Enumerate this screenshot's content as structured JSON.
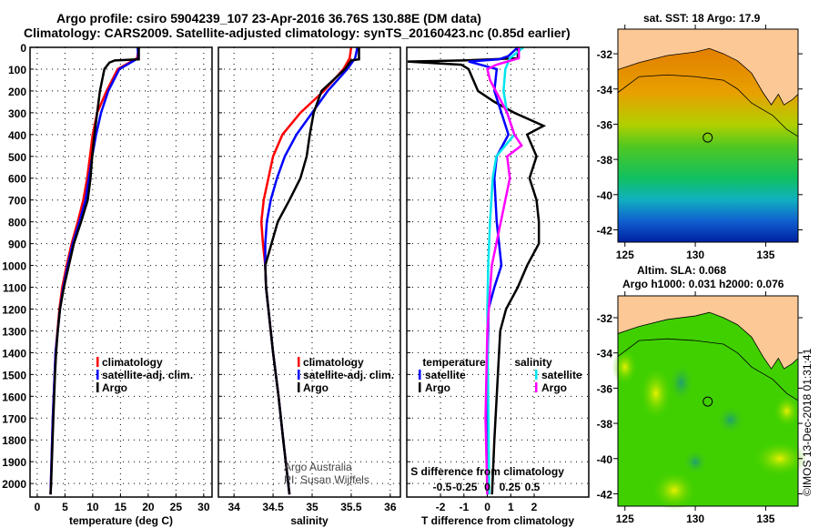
{
  "titles": {
    "line1": "Argo profile: csiro 5904239_107 23-Apr-2016 36.76S 130.88E (DM data)",
    "line2": "Climatology: CARS2009. Satellite-adjusted climatology: synTS_20160423.nc (0.85d earlier)"
  },
  "colors": {
    "climatology": "#ff0000",
    "satellite": "#0000ff",
    "argo": "#000000",
    "sal_satellite": "#00e5ee",
    "sal_argo": "#ff00ff",
    "land": "#fcc996"
  },
  "chart_data": [
    {
      "type": "line",
      "id": "temperature",
      "xlabel": "temperature (deg C)",
      "ylabel": "depth",
      "xlim": [
        -1.3,
        31.5
      ],
      "ylim": [
        2062,
        0
      ],
      "xticks": [
        0,
        5,
        10,
        15,
        20,
        25,
        30
      ],
      "yticks": [
        0,
        100,
        200,
        300,
        400,
        500,
        600,
        700,
        800,
        900,
        1000,
        1100,
        1200,
        1300,
        1400,
        1500,
        1600,
        1700,
        1800,
        1900,
        2000
      ],
      "legend": [
        "climatology",
        "satellite-adj. clim.",
        "Argo"
      ],
      "series": [
        {
          "name": "climatology",
          "color": "#ff0000",
          "depth": [
            0,
            50,
            100,
            200,
            300,
            400,
            500,
            600,
            700,
            800,
            900,
            1000,
            1100,
            1200,
            1400,
            1700,
            2050
          ],
          "values": [
            18.3,
            18.0,
            14.5,
            12.5,
            10.8,
            10.0,
            9.5,
            9.0,
            8.3,
            7.3,
            6.2,
            5.3,
            4.5,
            4.0,
            3.3,
            2.8,
            2.4
          ]
        },
        {
          "name": "satellite-adj. clim.",
          "color": "#0000ff",
          "depth": [
            0,
            50,
            100,
            200,
            300,
            400,
            500,
            600,
            700,
            800,
            900,
            1000,
            1100,
            1200,
            1400,
            1700,
            2050
          ],
          "values": [
            18.1,
            18.2,
            14.8,
            12.8,
            11.5,
            10.6,
            9.9,
            9.3,
            8.7,
            7.6,
            6.4,
            5.5,
            4.7,
            4.1,
            3.3,
            2.8,
            2.4
          ]
        },
        {
          "name": "Argo",
          "color": "#000000",
          "depth": [
            0,
            55,
            60,
            70,
            100,
            200,
            300,
            400,
            500,
            600,
            700,
            800,
            900,
            1000,
            1100,
            1200,
            1300,
            1400,
            1500,
            1700,
            2000,
            2050
          ],
          "values": [
            18.3,
            18.3,
            14,
            13,
            12.1,
            11.3,
            10.8,
            10.3,
            9.9,
            9.6,
            9.1,
            7.9,
            6.6,
            5.7,
            4.8,
            4.1,
            3.7,
            3.4,
            3.2,
            2.9,
            2.5,
            2.4
          ]
        }
      ]
    },
    {
      "type": "line",
      "id": "salinity",
      "xlabel": "salinity",
      "xlim": [
        33.8,
        36.13
      ],
      "ylim": [
        2062,
        0
      ],
      "xticks": [
        34,
        34.5,
        35,
        35.5,
        36
      ],
      "legend": [
        "climatology",
        "satellite-adj. clim.",
        "Argo"
      ],
      "annotation": [
        "Argo Australia",
        "PI: Susan Wijffels"
      ],
      "series": [
        {
          "name": "climatology",
          "color": "#ff0000",
          "depth": [
            0,
            50,
            100,
            200,
            300,
            400,
            500,
            600,
            700,
            800,
            900,
            1000,
            1100,
            1200,
            1400,
            1600,
            1800,
            2050
          ],
          "values": [
            35.5,
            35.48,
            35.4,
            35.15,
            34.85,
            34.62,
            34.5,
            34.44,
            34.38,
            34.35,
            34.37,
            34.4,
            34.41,
            34.44,
            34.5,
            34.57,
            34.63,
            34.71
          ]
        },
        {
          "name": "satellite-adj. clim.",
          "color": "#0000ff",
          "depth": [
            0,
            50,
            100,
            200,
            300,
            400,
            500,
            600,
            700,
            800,
            900,
            1000,
            1100,
            1200,
            1400,
            1600,
            1800,
            2050
          ],
          "values": [
            35.58,
            35.55,
            35.45,
            35.2,
            35.0,
            34.8,
            34.65,
            34.55,
            34.47,
            34.42,
            34.4,
            34.4,
            34.41,
            34.44,
            34.5,
            34.57,
            34.63,
            34.71
          ]
        },
        {
          "name": "Argo",
          "color": "#000000",
          "depth": [
            0,
            55,
            60,
            100,
            200,
            300,
            400,
            500,
            600,
            700,
            800,
            900,
            1000,
            1100,
            1200,
            1400,
            1600,
            1800,
            2050
          ],
          "values": [
            35.6,
            35.6,
            35.5,
            35.42,
            35.12,
            35.02,
            34.97,
            34.93,
            34.85,
            34.71,
            34.56,
            34.48,
            34.4,
            34.41,
            34.44,
            34.5,
            34.57,
            34.63,
            34.71
          ]
        }
      ]
    },
    {
      "type": "line",
      "id": "difference",
      "xlabel": "T difference from climatology",
      "x2label": "S difference from climatology",
      "xlim": [
        -3.44,
        4.33
      ],
      "x2lim": [
        -0.894,
        1.126
      ],
      "ylim": [
        2062,
        0
      ],
      "xticks": [
        -2,
        -1,
        0,
        1,
        2
      ],
      "x2ticks": [
        -0.5,
        -0.25,
        0,
        0.25,
        0.5
      ],
      "x2ticklabels": [
        "-0.5",
        "-0.25",
        "0",
        "0.25",
        "0.5"
      ],
      "legend": {
        "temperature": {
          "heading": "temperature",
          "items": [
            "satellite",
            "Argo"
          ]
        },
        "salinity": {
          "heading": "salinity",
          "items": [
            "satellite",
            "Argo"
          ]
        }
      },
      "series": [
        {
          "name": "T Argo",
          "axis": "T",
          "color": "#000000",
          "depth": [
            0,
            50,
            60,
            65,
            80,
            100,
            200,
            250,
            300,
            360,
            400,
            500,
            600,
            700,
            800,
            900,
            1000,
            1100,
            1200,
            1300,
            1400,
            1600,
            1800,
            2050
          ],
          "values": [
            1.3,
            1.3,
            -1.0,
            -3.4,
            -1.1,
            -0.8,
            -0.4,
            0.3,
            1.15,
            2.4,
            1.7,
            2.1,
            1.8,
            2.1,
            2.2,
            2.2,
            1.7,
            1.3,
            0.8,
            0.55,
            0.5,
            0.4,
            0.3,
            0.2
          ]
        },
        {
          "name": "T satellite",
          "axis": "T",
          "color": "#0000ff",
          "depth": [
            0,
            40,
            55,
            65,
            100,
            200,
            300,
            400,
            500,
            600,
            800,
            1000,
            1100,
            1200,
            1500,
            2050
          ],
          "values": [
            1.3,
            0.9,
            0.5,
            -0.8,
            0.4,
            0.3,
            0.6,
            0.9,
            0.4,
            0.3,
            0.4,
            0.6,
            0.3,
            0.05,
            0.0,
            0.0
          ]
        },
        {
          "name": "S satellite",
          "axis": "S",
          "color": "#00e5ee",
          "depth": [
            0,
            50,
            100,
            200,
            300,
            400,
            500,
            600,
            800,
            1000,
            1200,
            1600,
            2050
          ],
          "values": [
            0.4,
            0.25,
            0.2,
            0.18,
            0.22,
            0.3,
            0.1,
            0.06,
            0.03,
            0.01,
            0.0,
            0.01,
            0.02
          ]
        },
        {
          "name": "S Argo",
          "axis": "S",
          "color": "#ff00ff",
          "depth": [
            0,
            50,
            80,
            100,
            150,
            300,
            400,
            450,
            500,
            600,
            800,
            1000,
            1300,
            1700,
            2050
          ],
          "values": [
            0.35,
            0.35,
            0.1,
            0.0,
            0.03,
            0.22,
            0.3,
            0.38,
            0.22,
            0.25,
            0.15,
            0.05,
            0.0,
            -0.02,
            0.0
          ]
        }
      ]
    },
    {
      "type": "heatmap",
      "id": "sst-map",
      "title": "sat. SST: 18 Argo: 17.9",
      "xlim": [
        124.5,
        137.3
      ],
      "ylim": [
        -42.7,
        -30.6
      ],
      "xticks": [
        125,
        130,
        135
      ],
      "yticks": [
        -32,
        -34,
        -36,
        -38,
        -40,
        -42
      ],
      "argo_position": [
        130.88,
        -36.76
      ]
    },
    {
      "type": "heatmap",
      "id": "sla-map",
      "title": "Altim. SLA: 0.068",
      "subtitle": "Argo h1000: 0.031 h2000: 0.076",
      "xlim": [
        124.5,
        137.3
      ],
      "ylim": [
        -42.7,
        -30.76
      ],
      "xticks": [
        125,
        130,
        135
      ],
      "yticks": [
        -32,
        -34,
        -36,
        -38,
        -40,
        -42
      ],
      "argo_position": [
        130.88,
        -36.76
      ]
    }
  ],
  "stamp": "©IMOS 13-Dec-2018 01:31:41"
}
